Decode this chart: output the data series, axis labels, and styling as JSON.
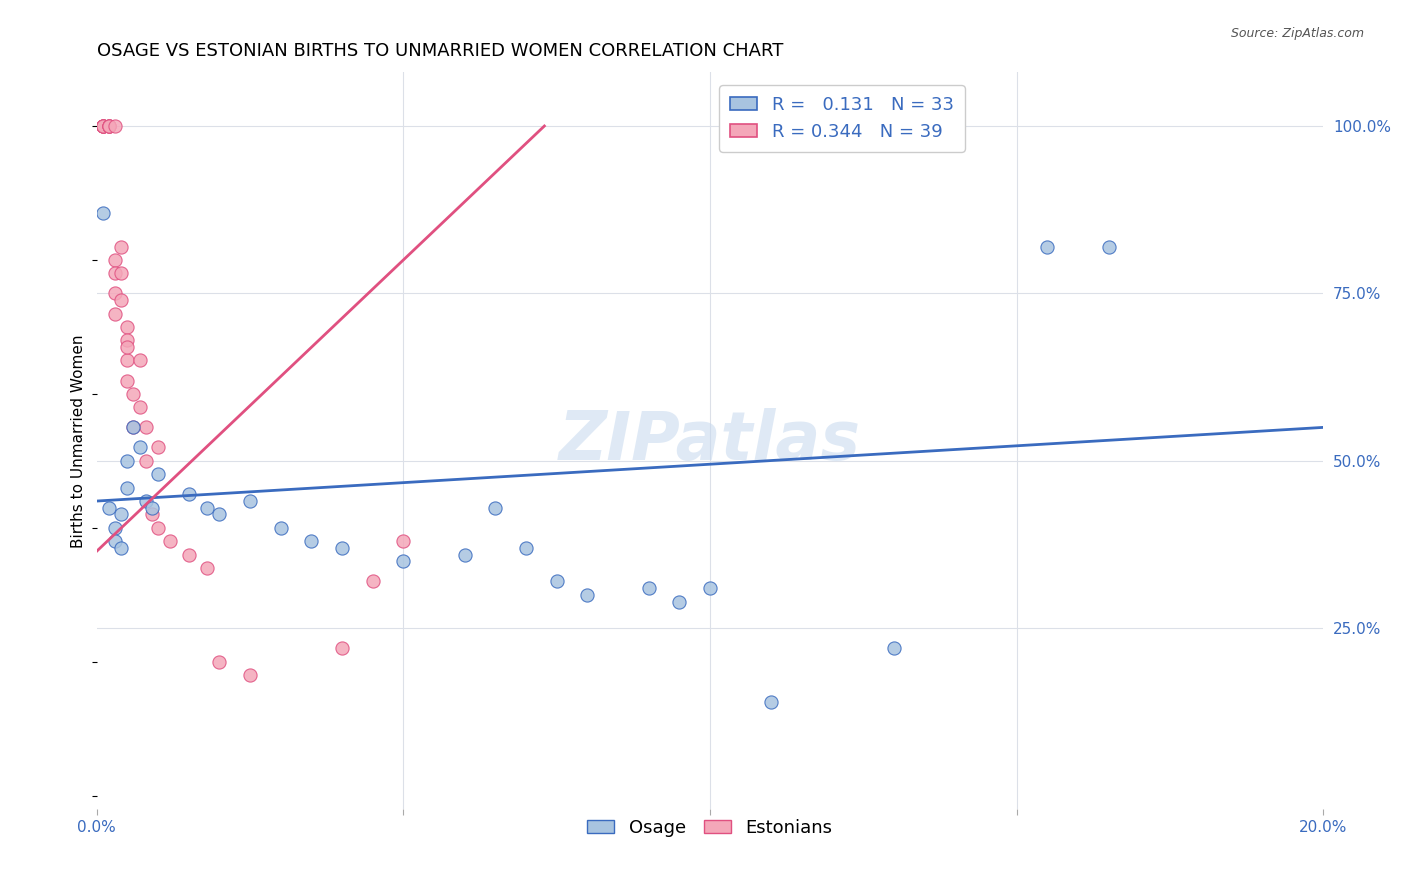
{
  "title": "OSAGE VS ESTONIAN BIRTHS TO UNMARRIED WOMEN CORRELATION CHART",
  "source_text": "Source: ZipAtlas.com",
  "ylabel": "Births to Unmarried Women",
  "xlim": [
    0.0,
    0.2
  ],
  "ylim": [
    -0.02,
    1.08
  ],
  "osage_R": 0.131,
  "osage_N": 33,
  "estonian_R": 0.344,
  "estonian_N": 39,
  "osage_color": "#a8c4e0",
  "estonian_color": "#f4a7b9",
  "osage_line_color": "#3a6bbf",
  "estonian_line_color": "#e05080",
  "watermark": "ZIPatlas",
  "osage_x": [
    0.001,
    0.002,
    0.003,
    0.003,
    0.004,
    0.004,
    0.005,
    0.005,
    0.006,
    0.007,
    0.008,
    0.009,
    0.01,
    0.015,
    0.018,
    0.02,
    0.025,
    0.03,
    0.035,
    0.04,
    0.05,
    0.06,
    0.065,
    0.07,
    0.075,
    0.08,
    0.09,
    0.095,
    0.1,
    0.11,
    0.13,
    0.155,
    0.165
  ],
  "osage_y": [
    0.87,
    0.43,
    0.4,
    0.38,
    0.37,
    0.42,
    0.46,
    0.5,
    0.55,
    0.52,
    0.44,
    0.43,
    0.48,
    0.45,
    0.43,
    0.42,
    0.44,
    0.4,
    0.38,
    0.37,
    0.35,
    0.36,
    0.43,
    0.37,
    0.32,
    0.3,
    0.31,
    0.29,
    0.31,
    0.14,
    0.22,
    0.82,
    0.82
  ],
  "estonian_x": [
    0.001,
    0.001,
    0.001,
    0.001,
    0.001,
    0.002,
    0.002,
    0.002,
    0.002,
    0.003,
    0.003,
    0.003,
    0.003,
    0.003,
    0.004,
    0.004,
    0.004,
    0.005,
    0.005,
    0.005,
    0.005,
    0.006,
    0.006,
    0.007,
    0.007,
    0.008,
    0.008,
    0.009,
    0.01,
    0.012,
    0.015,
    0.018,
    0.02,
    0.025,
    0.04,
    0.045,
    0.05,
    0.005,
    0.01
  ],
  "estonian_y": [
    1.0,
    1.0,
    1.0,
    1.0,
    1.0,
    1.0,
    1.0,
    1.0,
    1.0,
    1.0,
    0.8,
    0.78,
    0.75,
    0.72,
    0.82,
    0.78,
    0.74,
    0.7,
    0.65,
    0.62,
    0.68,
    0.6,
    0.55,
    0.65,
    0.58,
    0.5,
    0.55,
    0.42,
    0.4,
    0.38,
    0.36,
    0.34,
    0.2,
    0.18,
    0.22,
    0.32,
    0.38,
    0.67,
    0.52
  ],
  "osage_line_x": [
    0.0,
    0.2
  ],
  "osage_line_y": [
    0.44,
    0.55
  ],
  "estonian_line_x": [
    0.0,
    0.073
  ],
  "estonian_line_y": [
    0.365,
    1.0
  ],
  "background_color": "#ffffff",
  "grid_color": "#dce0e8",
  "title_fontsize": 13,
  "axis_label_fontsize": 11,
  "tick_fontsize": 11,
  "legend_fontsize": 13,
  "marker_size": 90
}
